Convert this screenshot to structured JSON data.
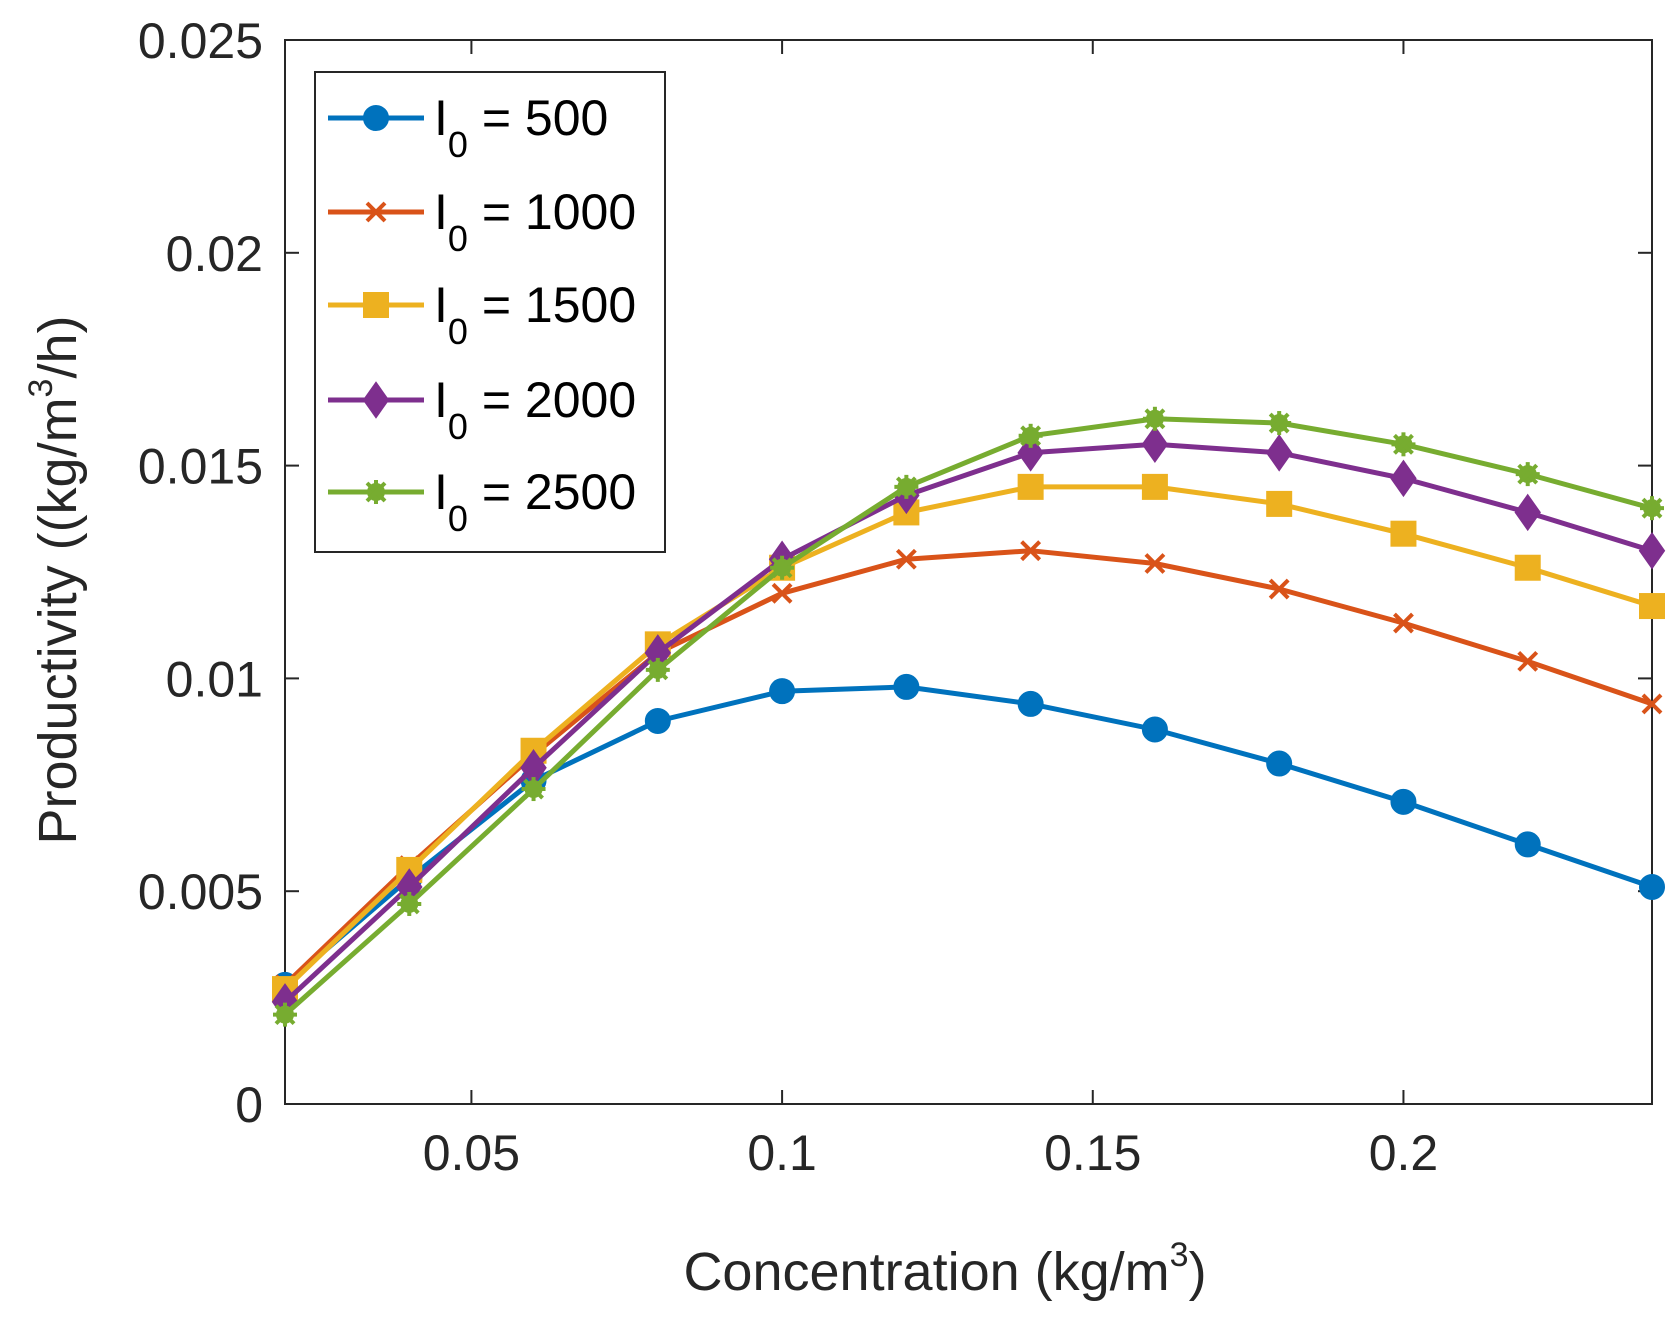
{
  "chart_data": {
    "type": "line",
    "title": "",
    "xlabel": "Concentration (kg/m",
    "xlabel_sup": "3",
    "xlabel_after": ")",
    "ylabel": "Productivity ((kg/m",
    "ylabel_sup": "3",
    "ylabel_after": "/h)",
    "xlim": [
      0.02,
      0.24
    ],
    "ylim": [
      0,
      0.025
    ],
    "xticks": [
      0.05,
      0.1,
      0.15,
      0.2
    ],
    "xtick_labels": [
      "0.05",
      "0.1",
      "0.15",
      "0.2"
    ],
    "yticks": [
      0,
      0.005,
      0.01,
      0.015,
      0.02,
      0.025
    ],
    "ytick_labels": [
      "0",
      "0.005",
      "0.01",
      "0.015",
      "0.02",
      "0.025"
    ],
    "grid": false,
    "legend_position": "top-left",
    "x": [
      0.02,
      0.04,
      0.06,
      0.08,
      0.1,
      0.12,
      0.14,
      0.16,
      0.18,
      0.2,
      0.22,
      0.24
    ],
    "series": [
      {
        "name": "I0 = 500",
        "legend_prefix": "I",
        "legend_sub": "0",
        "legend_suffix": " = 500",
        "color": "#0072BD",
        "marker": "circle",
        "values": [
          0.0028,
          0.0053,
          0.0076,
          0.009,
          0.0097,
          0.0098,
          0.0094,
          0.0088,
          0.008,
          0.0071,
          0.0061,
          0.0051
        ]
      },
      {
        "name": "I0 = 1000",
        "legend_prefix": "I",
        "legend_sub": "0",
        "legend_suffix": " = 1000",
        "color": "#D95319",
        "marker": "x",
        "values": [
          0.0028,
          0.0056,
          0.0082,
          0.0106,
          0.012,
          0.0128,
          0.013,
          0.0127,
          0.0121,
          0.0113,
          0.0104,
          0.0094
        ]
      },
      {
        "name": "I0 = 1500",
        "legend_prefix": "I",
        "legend_sub": "0",
        "legend_suffix": " = 1500",
        "color": "#EDB120",
        "marker": "square",
        "values": [
          0.0027,
          0.0055,
          0.0083,
          0.0108,
          0.0126,
          0.0139,
          0.0145,
          0.0145,
          0.0141,
          0.0134,
          0.0126,
          0.0117
        ]
      },
      {
        "name": "I0 = 2000",
        "legend_prefix": "I",
        "legend_sub": "0",
        "legend_suffix": " = 2000",
        "color": "#7E2F8E",
        "marker": "diamond",
        "values": [
          0.0024,
          0.0051,
          0.0079,
          0.0106,
          0.0128,
          0.0143,
          0.0153,
          0.0155,
          0.0153,
          0.0147,
          0.0139,
          0.013
        ]
      },
      {
        "name": "I0 = 2500",
        "legend_prefix": "I",
        "legend_sub": "0",
        "legend_suffix": " = 2500",
        "color": "#77AC30",
        "marker": "star",
        "values": [
          0.0021,
          0.0047,
          0.0074,
          0.0102,
          0.0126,
          0.0145,
          0.0157,
          0.0161,
          0.016,
          0.0155,
          0.0148,
          0.014
        ]
      }
    ]
  }
}
